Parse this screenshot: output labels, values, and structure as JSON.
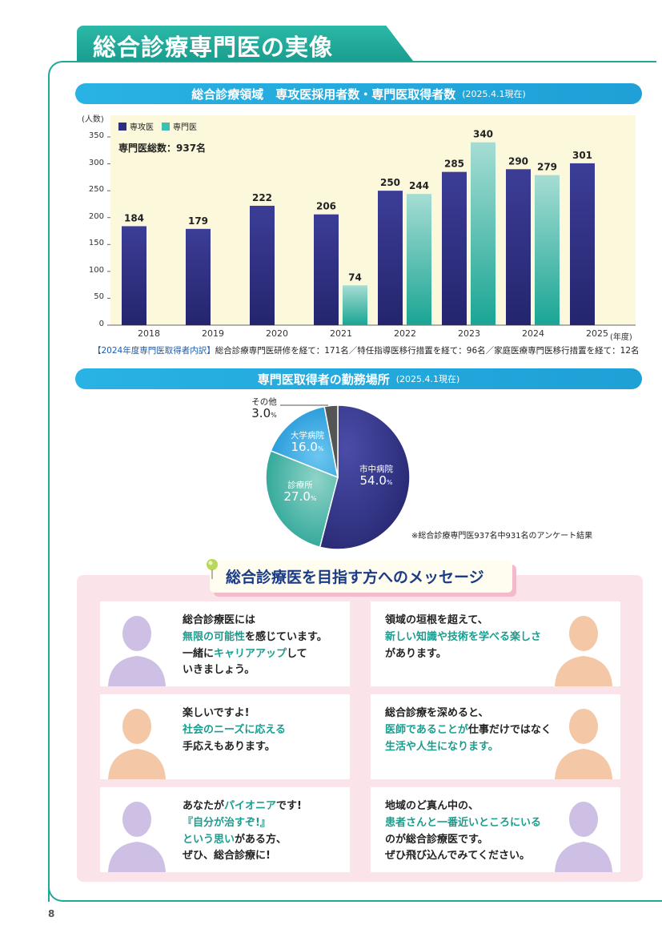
{
  "page_title": "総合診療専門医の実像",
  "chart_section": {
    "title": "総合診療領域　専攻医採用者数・専門医取得者数",
    "date": "(2025.4.1現在)"
  },
  "chart_data": {
    "type": "bar",
    "ylabel": "(人数)",
    "xlabel": "(年度)",
    "ylim": [
      0,
      350
    ],
    "yticks": [
      "0",
      "50",
      "100",
      "150",
      "200",
      "250",
      "300",
      "350"
    ],
    "categories": [
      "2018",
      "2019",
      "2020",
      "2021",
      "2022",
      "2023",
      "2024",
      "2025"
    ],
    "series": [
      {
        "name": "専攻医",
        "values": [
          184,
          179,
          222,
          206,
          250,
          285,
          290,
          301
        ],
        "color": "#2e2f82"
      },
      {
        "name": "専門医",
        "values": [
          null,
          null,
          null,
          74,
          244,
          340,
          279,
          null
        ],
        "color": "#3fbfb0"
      }
    ],
    "annotation": "専門医総数：937名",
    "grid": false,
    "legend": "top-left"
  },
  "breakdown": {
    "label": "【2024年度専門医取得者内訳】",
    "text": "総合診療専門医研修を経て：171名／特任指導医移行措置を経て：96名／家庭医療専門医移行措置を経て：12名"
  },
  "pie_section": {
    "title": "専門医取得者の勤務場所",
    "date": "(2025.4.1現在)",
    "note": "※総合診療専門医937名中931名のアンケート結果",
    "slices": [
      {
        "name": "市中病院",
        "value": 54.0,
        "label": "54.0",
        "color": "#2e2f82"
      },
      {
        "name": "診療所",
        "value": 27.0,
        "label": "27.0",
        "color": "#2aa79a"
      },
      {
        "name": "大学病院",
        "value": 16.0,
        "label": "16.0",
        "color": "#1fa0e0"
      },
      {
        "name": "その他",
        "value": 3.0,
        "label": "3.0",
        "color": "#555555"
      }
    ],
    "unit": "%"
  },
  "messages": {
    "title": "総合診療医を目指す方へのメッセージ",
    "cards": [
      {
        "lines": [
          [
            {
              "t": "総合診療医には",
              "g": false
            }
          ],
          [
            {
              "t": "無限の可能性",
              "g": true
            },
            {
              "t": "を感じています。",
              "g": false
            }
          ],
          [
            {
              "t": "一緒に",
              "g": false
            },
            {
              "t": "キャリアアップ",
              "g": true
            },
            {
              "t": "して",
              "g": false
            }
          ],
          [
            {
              "t": "いきましょう。",
              "g": false
            }
          ]
        ]
      },
      {
        "lines": [
          [
            {
              "t": "領域の垣根を超えて、",
              "g": false
            }
          ],
          [
            {
              "t": "新しい知識や技術を学べる楽しさ",
              "g": true
            }
          ],
          [
            {
              "t": "があります。",
              "g": false
            }
          ]
        ]
      },
      {
        "lines": [
          [
            {
              "t": "楽しいですよ!",
              "g": false
            }
          ],
          [
            {
              "t": "社会のニーズに応える",
              "g": true
            }
          ],
          [
            {
              "t": "手応えもあります。",
              "g": false
            }
          ]
        ]
      },
      {
        "lines": [
          [
            {
              "t": "総合診療を深めると、",
              "g": false
            }
          ],
          [
            {
              "t": "医師であることが",
              "g": true
            },
            {
              "t": "仕事だけではなく",
              "g": false
            }
          ],
          [
            {
              "t": "生活や人生になります。",
              "g": true
            }
          ]
        ]
      },
      {
        "lines": [
          [
            {
              "t": "あなたが",
              "g": false
            },
            {
              "t": "パイオニア",
              "g": true
            },
            {
              "t": "です!",
              "g": false
            }
          ],
          [
            {
              "t": "『自分が治すぞ!』",
              "g": true
            }
          ],
          [
            {
              "t": "という思い",
              "g": true
            },
            {
              "t": "がある方、",
              "g": false
            }
          ],
          [
            {
              "t": "ぜひ、総合診療に!",
              "g": false
            }
          ]
        ]
      },
      {
        "lines": [
          [
            {
              "t": "地域のど真ん中の、",
              "g": false
            }
          ],
          [
            {
              "t": "患者さんと一番近いところにいる",
              "g": true
            }
          ],
          [
            {
              "t": "のが総合診療医です。",
              "g": false
            }
          ],
          [
            {
              "t": "ぜひ飛び込んでみてください。",
              "g": false
            }
          ]
        ]
      }
    ]
  },
  "page_number": "8"
}
